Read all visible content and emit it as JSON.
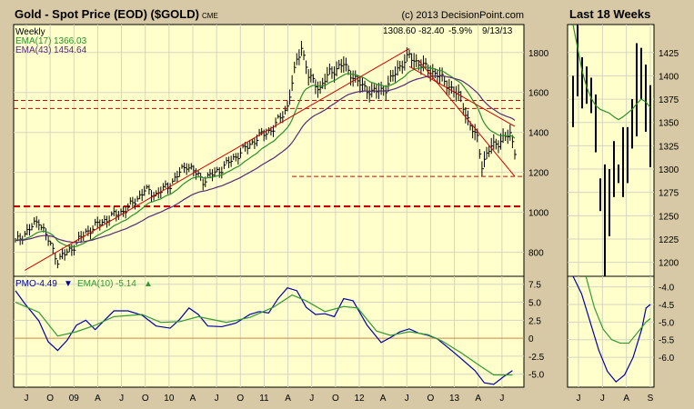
{
  "colors": {
    "frame": "#d8c9a6",
    "plot": "#ffffcc",
    "grid": "#d5d5c2",
    "bar": "#000000",
    "ema17": "#2a8f2a",
    "ema43": "#552a77",
    "trend": "#cc0000",
    "pmo": "#0000aa",
    "pmo_signal": "#339933",
    "zero": "#cc8844"
  },
  "chart_data": [
    {
      "type": "bar",
      "title": "Gold - Spot Price (EOD) ($GOLD)",
      "exchange": "CME",
      "credit": "(c) 2013 DecisionPoint.com",
      "period": "Weekly",
      "quote": {
        "close": "1308.60",
        "change": "-82.40",
        "pct": "-5.9%",
        "date": "9/13/13"
      },
      "legend": [
        {
          "label": "EMA(17)",
          "value": "1366.03"
        },
        {
          "label": "EMA(43)",
          "value": "1454.64"
        }
      ],
      "y_ticks": [
        "800",
        "1000",
        "1200",
        "1400",
        "1600",
        "1800"
      ],
      "ylim": [
        680,
        1940
      ],
      "x_ticks": [
        "J",
        "O",
        "09",
        "A",
        "J",
        "O",
        "10",
        "A",
        "J",
        "O",
        "11",
        "A",
        "J",
        "O",
        "12",
        "A",
        "J",
        "O",
        "13",
        "A",
        "J"
      ],
      "weekly_close_path": [
        [
          0,
          850
        ],
        [
          10,
          960
        ],
        [
          18,
          760
        ],
        [
          24,
          820
        ],
        [
          30,
          900
        ],
        [
          38,
          960
        ],
        [
          48,
          1020
        ],
        [
          55,
          1110
        ],
        [
          60,
          1090
        ],
        [
          66,
          1140
        ],
        [
          73,
          1240
        ],
        [
          80,
          1160
        ],
        [
          88,
          1220
        ],
        [
          96,
          1300
        ],
        [
          104,
          1380
        ],
        [
          110,
          1420
        ],
        [
          116,
          1530
        ],
        [
          120,
          1760
        ],
        [
          122,
          1830
        ],
        [
          125,
          1680
        ],
        [
          130,
          1620
        ],
        [
          134,
          1700
        ],
        [
          140,
          1740
        ],
        [
          146,
          1650
        ],
        [
          152,
          1600
        ],
        [
          158,
          1620
        ],
        [
          163,
          1720
        ],
        [
          168,
          1780
        ],
        [
          174,
          1730
        ],
        [
          180,
          1690
        ],
        [
          186,
          1620
        ],
        [
          190,
          1570
        ],
        [
          194,
          1430
        ],
        [
          197,
          1370
        ],
        [
          199,
          1240
        ],
        [
          203,
          1330
        ],
        [
          207,
          1360
        ],
        [
          211,
          1390
        ],
        [
          213,
          1310
        ]
      ],
      "horizontal_levels": [
        1180,
        1520,
        1560,
        1030
      ],
      "trendlines": [
        [
          [
            4,
            710
          ],
          [
            168,
            1820
          ]
        ],
        [
          [
            172,
            1760
          ],
          [
            213,
            1180
          ]
        ],
        [
          [
            168,
            1730
          ],
          [
            213,
            1430
          ]
        ]
      ]
    },
    {
      "type": "bar",
      "title": "Last 18 Weeks",
      "y_ticks": [
        "1200",
        "1225",
        "1250",
        "1275",
        "1300",
        "1325",
        "1350",
        "1375",
        "1400",
        "1425"
      ],
      "ylim": [
        1185,
        1455
      ],
      "x_ticks": [
        "J",
        "J",
        "A",
        "S"
      ],
      "bars": [
        [
          1400,
          1345
        ],
        [
          1455,
          1378
        ],
        [
          1420,
          1365
        ],
        [
          1410,
          1370
        ],
        [
          1398,
          1360
        ],
        [
          1380,
          1318
        ],
        [
          1290,
          1255
        ],
        [
          1305,
          1178
        ],
        [
          1300,
          1228
        ],
        [
          1330,
          1270
        ],
        [
          1305,
          1285
        ],
        [
          1345,
          1270
        ],
        [
          1345,
          1285
        ],
        [
          1375,
          1322
        ],
        [
          1435,
          1335
        ],
        [
          1430,
          1375
        ],
        [
          1412,
          1340
        ],
        [
          1390,
          1302
        ]
      ],
      "ema17": [
        1460,
        1430,
        1405,
        1388,
        1376,
        1368,
        1364,
        1362,
        1360,
        1356,
        1353,
        1356,
        1360,
        1364,
        1370,
        1375,
        1372,
        1366
      ]
    },
    {
      "type": "line",
      "title": "PMO",
      "legend": [
        {
          "label": "PMO",
          "value": "-4.49",
          "arrow": "down"
        },
        {
          "label": "EMA(10)",
          "value": "-5.14",
          "arrow": "up"
        }
      ],
      "y_ticks": [
        "7.5",
        "5.0",
        "2.5",
        "0",
        "-2.5",
        "-5.0"
      ],
      "ylim": [
        -6.8,
        8.6
      ],
      "series": [
        {
          "points": [
            [
              0,
              6.6
            ],
            [
              4,
              4.8
            ],
            [
              10,
              2.4
            ],
            [
              14,
              -0.5
            ],
            [
              18,
              -1.7
            ],
            [
              22,
              -0.3
            ],
            [
              26,
              1.8
            ],
            [
              30,
              2.5
            ],
            [
              34,
              1.2
            ],
            [
              38,
              2.5
            ],
            [
              42,
              3.8
            ],
            [
              48,
              3.8
            ],
            [
              54,
              3.2
            ],
            [
              60,
              1.7
            ],
            [
              66,
              1.4
            ],
            [
              70,
              2.6
            ],
            [
              74,
              4.2
            ],
            [
              78,
              3.3
            ],
            [
              82,
              1.7
            ],
            [
              88,
              1.6
            ],
            [
              94,
              2.1
            ],
            [
              100,
              3.3
            ],
            [
              104,
              3.7
            ],
            [
              108,
              3.5
            ],
            [
              112,
              5.5
            ],
            [
              116,
              7.0
            ],
            [
              120,
              6.6
            ],
            [
              124,
              4.3
            ],
            [
              128,
              3.3
            ],
            [
              132,
              3.4
            ],
            [
              136,
              3.0
            ],
            [
              140,
              5.5
            ],
            [
              144,
              5.2
            ],
            [
              150,
              1.8
            ],
            [
              156,
              -0.6
            ],
            [
              160,
              0.1
            ],
            [
              164,
              0.9
            ],
            [
              168,
              1.3
            ],
            [
              172,
              0.7
            ],
            [
              176,
              0.4
            ],
            [
              180,
              -0.1
            ],
            [
              186,
              -1.7
            ],
            [
              190,
              -2.8
            ],
            [
              196,
              -4.5
            ],
            [
              200,
              -6.2
            ],
            [
              204,
              -6.4
            ],
            [
              208,
              -5.4
            ],
            [
              212,
              -4.5
            ]
          ]
        },
        {
          "points": [
            [
              0,
              5.0
            ],
            [
              10,
              3.6
            ],
            [
              18,
              0.3
            ],
            [
              26,
              0.9
            ],
            [
              34,
              1.8
            ],
            [
              42,
              3.0
            ],
            [
              54,
              3.3
            ],
            [
              62,
              2.2
            ],
            [
              70,
              2.3
            ],
            [
              78,
              3.0
            ],
            [
              90,
              2.2
            ],
            [
              100,
              2.9
            ],
            [
              110,
              4.3
            ],
            [
              118,
              6.0
            ],
            [
              124,
              5.2
            ],
            [
              132,
              3.7
            ],
            [
              140,
              4.4
            ],
            [
              146,
              4.2
            ],
            [
              154,
              1.0
            ],
            [
              160,
              0.4
            ],
            [
              168,
              0.9
            ],
            [
              176,
              0.5
            ],
            [
              182,
              -0.4
            ],
            [
              190,
              -2.0
            ],
            [
              198,
              -3.8
            ],
            [
              204,
              -5.1
            ],
            [
              212,
              -5.1
            ]
          ]
        }
      ]
    },
    {
      "type": "line",
      "title": "",
      "y_ticks": [
        "-4.0",
        "-4.5",
        "-5.0",
        "-5.5",
        "-6.0"
      ],
      "ylim": [
        -6.85,
        -3.7
      ],
      "x_ticks": [
        "J",
        "J",
        "A",
        "S"
      ],
      "series": [
        {
          "points": [
            [
              0,
              -3.7
            ],
            [
              2,
              -4.2
            ],
            [
              4,
              -5.0
            ],
            [
              6,
              -5.8
            ],
            [
              8,
              -6.4
            ],
            [
              10,
              -6.7
            ],
            [
              12,
              -6.5
            ],
            [
              14,
              -6.0
            ],
            [
              16,
              -5.2
            ],
            [
              17,
              -4.6
            ],
            [
              18,
              -4.5
            ]
          ]
        },
        {
          "points": [
            [
              3,
              -3.7
            ],
            [
              5,
              -4.6
            ],
            [
              7,
              -5.2
            ],
            [
              9,
              -5.5
            ],
            [
              11,
              -5.6
            ],
            [
              13,
              -5.6
            ],
            [
              15,
              -5.3
            ],
            [
              17,
              -5.0
            ],
            [
              18,
              -4.9
            ]
          ]
        }
      ]
    }
  ]
}
